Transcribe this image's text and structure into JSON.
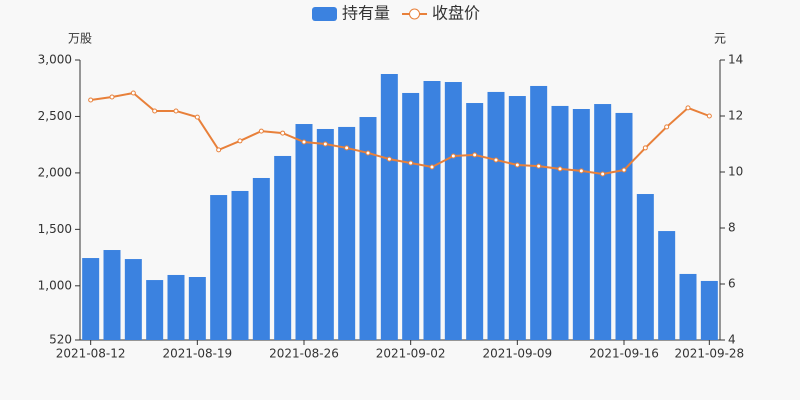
{
  "chart_data": {
    "type": "bar-line",
    "y_label": "万股",
    "y2_label": "元",
    "categories": [
      "2021-08-12",
      null,
      null,
      null,
      null,
      "2021-08-19",
      null,
      null,
      null,
      null,
      "2021-08-26",
      null,
      null,
      null,
      null,
      "2021-09-02",
      null,
      null,
      null,
      null,
      "2021-09-09",
      null,
      null,
      null,
      null,
      "2021-09-16",
      null,
      null,
      null,
      "2021-09-28"
    ],
    "series": [
      {
        "name": "持有量",
        "color": "#3b82e0",
        "type": "bar",
        "values": [
          1246,
          1317,
          1237,
          1051,
          1096,
          1078,
          1804,
          1840,
          1955,
          2150,
          2433,
          2389,
          2407,
          2495,
          2876,
          2708,
          2814,
          2805,
          2619,
          2717,
          2681,
          2770,
          2593,
          2566,
          2610,
          2531,
          1813,
          1485,
          1105,
          1043
        ]
      },
      {
        "name": "收盘价",
        "color": "#e8803a",
        "type": "line",
        "axis": "y2",
        "values": [
          12.57,
          12.68,
          12.82,
          12.18,
          12.18,
          11.96,
          10.79,
          11.11,
          11.46,
          11.39,
          11.07,
          11.0,
          10.86,
          10.68,
          10.46,
          10.32,
          10.18,
          10.57,
          10.61,
          10.43,
          10.25,
          10.21,
          10.11,
          10.04,
          9.93,
          10.07,
          10.86,
          11.61,
          12.29,
          12.0
        ]
      }
    ],
    "ylim": [
      520,
      3000
    ],
    "yticks": [
      520,
      {
        "value": 1000,
        "label": "1,000"
      },
      {
        "value": 1500,
        "label": "1,500"
      },
      {
        "value": 2000,
        "label": "2,000"
      },
      {
        "value": 2500,
        "label": "2,500"
      },
      {
        "value": 3000,
        "label": "3,000"
      }
    ],
    "y2lim": [
      4,
      14
    ],
    "y2ticks": [
      4,
      6,
      8,
      10,
      12,
      14
    ]
  }
}
